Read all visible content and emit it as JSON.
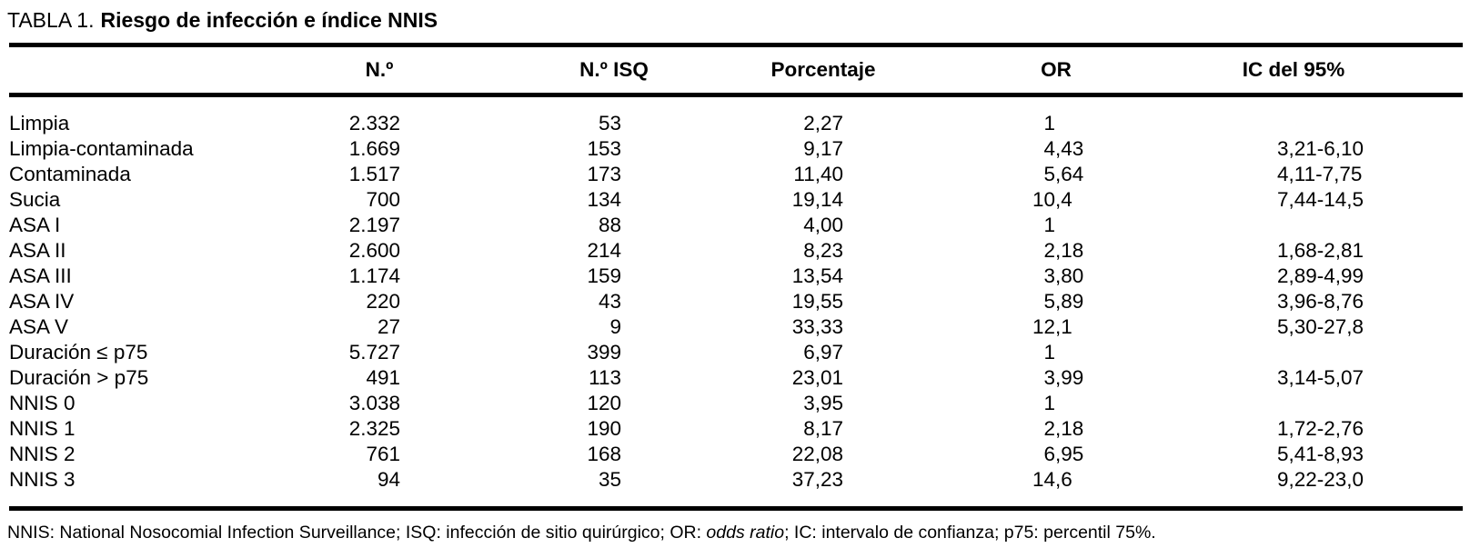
{
  "title": {
    "label": "TABLA 1.",
    "caption": "Riesgo de infección e índice NNIS"
  },
  "table": {
    "columns": [
      "N.º",
      "N.º ISQ",
      "Porcentaje",
      "OR",
      "IC del 95%"
    ],
    "rows": [
      {
        "label": "Limpia",
        "n": "2.332",
        "isq": "53",
        "pct": "2,27",
        "or": "1",
        "ic": ""
      },
      {
        "label": "Limpia-contaminada",
        "n": "1.669",
        "isq": "153",
        "pct": "9,17",
        "or": "4,43",
        "ic": "3,21-6,10"
      },
      {
        "label": "Contaminada",
        "n": "1.517",
        "isq": "173",
        "pct": "11,40",
        "or": "5,64",
        "ic": "4,11-7,75"
      },
      {
        "label": "Sucia",
        "n": "700",
        "isq": "134",
        "pct": "19,14",
        "or": "10,4",
        "ic": "7,44-14,5"
      },
      {
        "label": "ASA I",
        "n": "2.197",
        "isq": "88",
        "pct": "4,00",
        "or": "1",
        "ic": ""
      },
      {
        "label": "ASA II",
        "n": "2.600",
        "isq": "214",
        "pct": "8,23",
        "or": "2,18",
        "ic": "1,68-2,81"
      },
      {
        "label": "ASA III",
        "n": "1.174",
        "isq": "159",
        "pct": "13,54",
        "or": "3,80",
        "ic": "2,89-4,99"
      },
      {
        "label": "ASA IV",
        "n": "220",
        "isq": "43",
        "pct": "19,55",
        "or": "5,89",
        "ic": "3,96-8,76"
      },
      {
        "label": "ASA V",
        "n": "27",
        "isq": "9",
        "pct": "33,33",
        "or": "12,1",
        "ic": "5,30-27,8"
      },
      {
        "label": "Duración ≤ p75",
        "n": "5.727",
        "isq": "399",
        "pct": "6,97",
        "or": "1",
        "ic": ""
      },
      {
        "label": "Duración > p75",
        "n": "491",
        "isq": "113",
        "pct": "23,01",
        "or": "3,99",
        "ic": "3,14-5,07"
      },
      {
        "label": "NNIS 0",
        "n": "3.038",
        "isq": "120",
        "pct": "3,95",
        "or": "1",
        "ic": ""
      },
      {
        "label": "NNIS 1",
        "n": "2.325",
        "isq": "190",
        "pct": "8,17",
        "or": "2,18",
        "ic": "1,72-2,76"
      },
      {
        "label": "NNIS 2",
        "n": "761",
        "isq": "168",
        "pct": "22,08",
        "or": "6,95",
        "ic": "5,41-8,93"
      },
      {
        "label": "NNIS 3",
        "n": "94",
        "isq": "35",
        "pct": "37,23",
        "or": "14,6",
        "ic": "9,22-23,0"
      }
    ]
  },
  "footnote": {
    "part1": "NNIS: National Nosocomial Infection Surveillance; ISQ: infección de sitio quirúrgico; OR: ",
    "italic": "odds ratio",
    "part2": "; IC: intervalo de confianza; p75: percentil 75%."
  },
  "colors": {
    "text": "#000000",
    "background": "#ffffff",
    "rule": "#000000"
  }
}
